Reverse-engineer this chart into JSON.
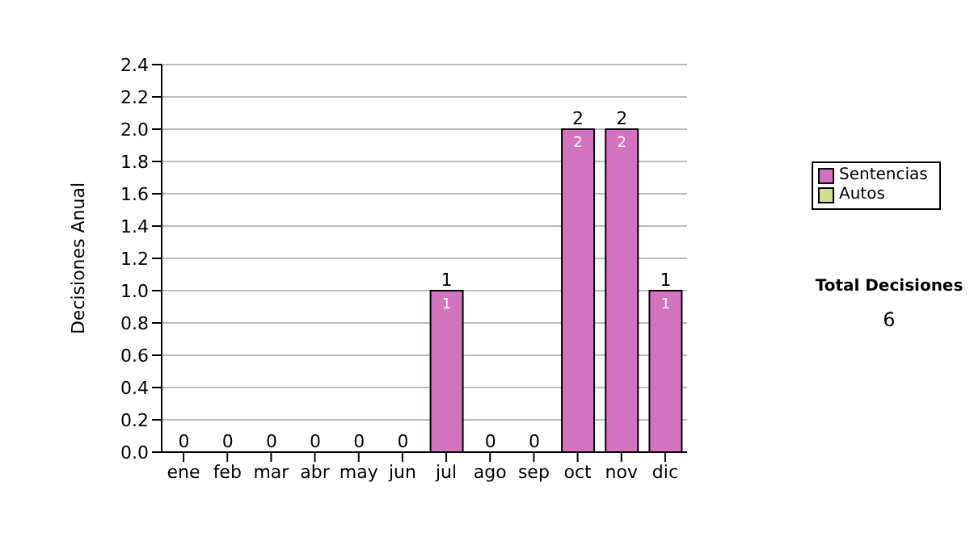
{
  "chart_data": {
    "type": "bar",
    "ylabel": "Decisiones Anual",
    "categories": [
      "ene",
      "feb",
      "mar",
      "abr",
      "may",
      "jun",
      "jul",
      "ago",
      "sep",
      "oct",
      "nov",
      "dic"
    ],
    "stacked": true,
    "series": [
      {
        "name": "Sentencias",
        "color": "#d473bd",
        "values": [
          0,
          0,
          0,
          0,
          0,
          0,
          1,
          0,
          0,
          2,
          2,
          1
        ],
        "value_labels": [
          null,
          null,
          null,
          null,
          null,
          null,
          "1",
          null,
          null,
          "2",
          "2",
          "1"
        ]
      },
      {
        "name": "Autos",
        "color": "#cfe08a",
        "values": [
          0,
          0,
          0,
          0,
          0,
          0,
          0,
          0,
          0,
          0,
          0,
          0
        ]
      }
    ],
    "totals": [
      "0",
      "0",
      "0",
      "0",
      "0",
      "0",
      "1",
      "0",
      "0",
      "2",
      "2",
      "1"
    ],
    "ylim": [
      0,
      2.4
    ],
    "yticks": [
      {
        "value": 0,
        "label": "0.0"
      },
      {
        "value": 0.2,
        "label": "0.2"
      },
      {
        "value": 0.4,
        "label": "0.4"
      },
      {
        "value": 0.6,
        "label": "0.6"
      },
      {
        "value": 0.8,
        "label": "0.8"
      },
      {
        "value": 1,
        "label": "1.0"
      },
      {
        "value": 1.2,
        "label": "1.2"
      },
      {
        "value": 1.4,
        "label": "1.4"
      },
      {
        "value": 1.6,
        "label": "1.6"
      },
      {
        "value": 1.8,
        "label": "1.8"
      },
      {
        "value": 2,
        "label": "2.0"
      },
      {
        "value": 2.2,
        "label": "2.2"
      },
      {
        "value": 2.4,
        "label": "2.4"
      }
    ],
    "grid": "y",
    "legend": "right",
    "annotations": [
      "Total Decisiones",
      "6"
    ]
  }
}
